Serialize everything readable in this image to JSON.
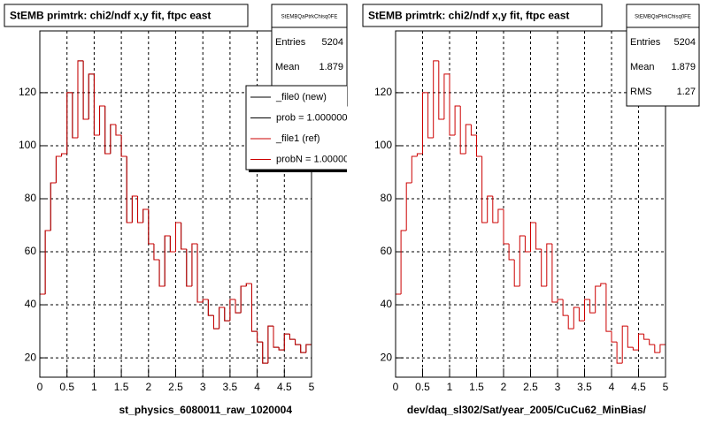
{
  "chart_data": [
    {
      "type": "histogram",
      "title": "StEMB primtrk: chi2/ndf x,y fit, ftpc east",
      "x_label": "st_physics_6080011_raw_1020004",
      "bins": [
        0,
        0.1,
        0.2,
        0.3,
        0.4,
        0.5,
        0.6,
        0.7,
        0.8,
        0.9,
        1,
        1.1,
        1.2,
        1.3,
        1.4,
        1.5,
        1.6,
        1.7,
        1.8,
        1.9,
        2,
        2.1,
        2.2,
        2.3,
        2.4,
        2.5,
        2.6,
        2.7,
        2.8,
        2.9,
        3,
        3.1,
        3.2,
        3.3,
        3.4,
        3.5,
        3.6,
        3.7,
        3.8,
        3.9,
        4,
        4.1,
        4.2,
        4.3,
        4.4,
        4.5,
        4.6,
        4.7,
        4.8,
        4.9,
        5
      ],
      "series": [
        {
          "name": "_file0 (new)",
          "note": "prob = 1.000000",
          "color": "#000000",
          "values": [
            44,
            68,
            86,
            96,
            97,
            120,
            103,
            132,
            110,
            127,
            104,
            115,
            97,
            108,
            104,
            96,
            71,
            81,
            71,
            76,
            63,
            57,
            47,
            66,
            60,
            71,
            61,
            47,
            63,
            41,
            42,
            36,
            31,
            39,
            34,
            42,
            37,
            47,
            48,
            30,
            26,
            18,
            32,
            24,
            23,
            29,
            27,
            25,
            22,
            25
          ]
        },
        {
          "name": "_file1 (ref)",
          "note": "probN = 1.000000",
          "color": "#cc0000",
          "values": [
            44,
            68,
            86,
            96,
            97,
            120,
            103,
            132,
            110,
            127,
            104,
            115,
            97,
            108,
            104,
            96,
            71,
            81,
            71,
            76,
            63,
            57,
            47,
            66,
            60,
            71,
            61,
            47,
            63,
            41,
            42,
            36,
            31,
            39,
            34,
            42,
            37,
            47,
            48,
            30,
            26,
            18,
            32,
            24,
            23,
            29,
            27,
            25,
            22,
            25
          ]
        }
      ],
      "legend": true,
      "stats": {
        "name": "StEMBQaPtrkChisq0FE",
        "rows": [
          [
            "Entries",
            "5204"
          ],
          [
            "Mean",
            "1.879"
          ]
        ]
      },
      "xlim": [
        0,
        5
      ],
      "xticks": [
        0,
        0.5,
        1,
        1.5,
        2,
        2.5,
        3,
        3.5,
        4,
        4.5,
        5
      ],
      "ylim": [
        12.7,
        143.3
      ],
      "yticks": [
        20,
        40,
        60,
        80,
        100,
        120
      ],
      "grid": true
    },
    {
      "type": "histogram",
      "title": "StEMB primtrk: chi2/ndf x,y fit, ftpc east",
      "x_label": "dev/daq_sl302/Sat/year_2005/CuCu62_MinBias/",
      "bins": [
        0,
        0.1,
        0.2,
        0.3,
        0.4,
        0.5,
        0.6,
        0.7,
        0.8,
        0.9,
        1,
        1.1,
        1.2,
        1.3,
        1.4,
        1.5,
        1.6,
        1.7,
        1.8,
        1.9,
        2,
        2.1,
        2.2,
        2.3,
        2.4,
        2.5,
        2.6,
        2.7,
        2.8,
        2.9,
        3,
        3.1,
        3.2,
        3.3,
        3.4,
        3.5,
        3.6,
        3.7,
        3.8,
        3.9,
        4,
        4.1,
        4.2,
        4.3,
        4.4,
        4.5,
        4.6,
        4.7,
        4.8,
        4.9,
        5
      ],
      "series": [
        {
          "color": "#cc0000",
          "values": [
            44,
            68,
            86,
            96,
            97,
            120,
            103,
            132,
            110,
            127,
            104,
            115,
            97,
            108,
            104,
            96,
            71,
            81,
            71,
            76,
            63,
            57,
            47,
            66,
            60,
            71,
            61,
            47,
            63,
            41,
            42,
            36,
            31,
            39,
            34,
            42,
            37,
            47,
            48,
            30,
            26,
            18,
            32,
            24,
            23,
            29,
            27,
            25,
            22,
            25
          ]
        }
      ],
      "legend": false,
      "stats": {
        "name": "StEMBQaPtrkChisq0FE",
        "rows": [
          [
            "Entries",
            "5204"
          ],
          [
            "Mean",
            "1.879"
          ],
          [
            "RMS",
            "1.27"
          ]
        ]
      },
      "xlim": [
        0,
        5
      ],
      "xticks": [
        0,
        0.5,
        1,
        1.5,
        2,
        2.5,
        3,
        3.5,
        4,
        4.5,
        5
      ],
      "ylim": [
        12.7,
        143.3
      ],
      "yticks": [
        20,
        40,
        60,
        80,
        100,
        120
      ],
      "grid": true
    }
  ]
}
